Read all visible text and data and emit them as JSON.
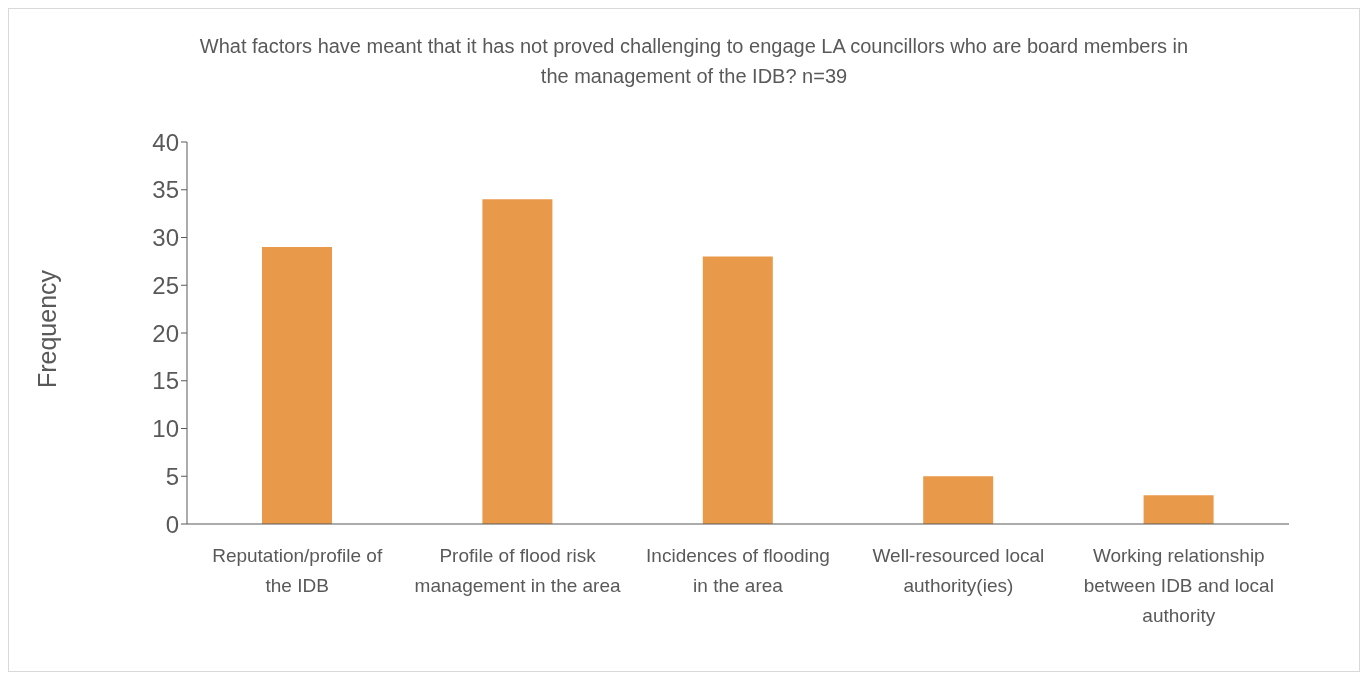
{
  "chart_data": {
    "type": "bar",
    "title": "What factors have meant that it has not proved challenging to engage LA councillors who are board members in the management of the IDB? n=39",
    "ylabel": "Frequency",
    "categories": [
      "Reputation/profile of the IDB",
      "Profile of flood risk management in the area",
      "Incidences of flooding in the area",
      "Well-resourced local authority(ies)",
      "Working relationship between IDB and local authority"
    ],
    "values": [
      29,
      34,
      28,
      5,
      3
    ],
    "color": "#e8994a",
    "ylim": [
      0,
      40
    ],
    "yticks": [
      0,
      5,
      10,
      15,
      20,
      25,
      30,
      35,
      40
    ],
    "grid": false,
    "legend": false
  }
}
